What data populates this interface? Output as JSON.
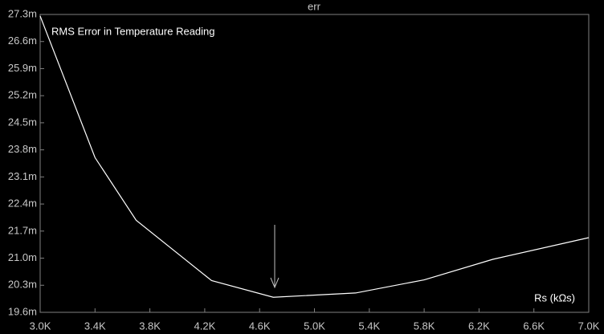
{
  "chart_data": {
    "type": "line",
    "title": "err",
    "annotation": "RMS Error in Temperature Reading",
    "x_label": "Rs (kΩs)",
    "x": [
      3.0,
      3.4,
      3.7,
      4.25,
      4.7,
      5.3,
      5.8,
      6.3,
      7.0
    ],
    "series": [
      {
        "name": "err",
        "color": "#ffffff",
        "values": [
          27.26,
          23.6,
          21.98,
          20.42,
          19.99,
          20.1,
          20.44,
          20.97,
          21.53
        ]
      }
    ],
    "xlim": [
      3.0,
      7.0
    ],
    "xticks": [
      {
        "value": 3.0,
        "label": "3.0K"
      },
      {
        "value": 3.4,
        "label": "3.4K"
      },
      {
        "value": 3.8,
        "label": "3.8K"
      },
      {
        "value": 4.2,
        "label": "4.2K"
      },
      {
        "value": 4.6,
        "label": "4.6K"
      },
      {
        "value": 5.0,
        "label": "5.0K"
      },
      {
        "value": 5.4,
        "label": "5.4K"
      },
      {
        "value": 5.8,
        "label": "5.8K"
      },
      {
        "value": 6.2,
        "label": "6.2K"
      },
      {
        "value": 6.6,
        "label": "6.6K"
      },
      {
        "value": 7.0,
        "label": "7.0K"
      }
    ],
    "ylim": [
      19.6,
      27.3
    ],
    "yticks": [
      {
        "value": 19.6,
        "label": "19.6m"
      },
      {
        "value": 20.3,
        "label": "20.3m"
      },
      {
        "value": 21.0,
        "label": "21.0m"
      },
      {
        "value": 21.7,
        "label": "21.7m"
      },
      {
        "value": 22.4,
        "label": "22.4m"
      },
      {
        "value": 23.1,
        "label": "23.1m"
      },
      {
        "value": 23.8,
        "label": "23.8m"
      },
      {
        "value": 24.5,
        "label": "24.5m"
      },
      {
        "value": 25.2,
        "label": "25.2m"
      },
      {
        "value": 25.9,
        "label": "25.9m"
      },
      {
        "value": 26.6,
        "label": "26.6m"
      },
      {
        "value": 27.3,
        "label": "27.3m"
      }
    ],
    "grid": false
  }
}
